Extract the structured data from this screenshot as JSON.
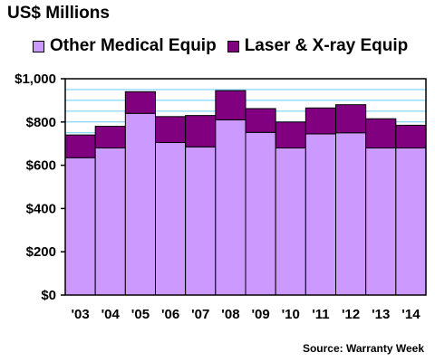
{
  "header": {
    "unit_title": "US$ Millions",
    "source": "Source: Warranty Week"
  },
  "colors": {
    "other_medical": "#cc99ff",
    "laser_xray": "#800080",
    "gridline": "#66ccff",
    "plot_bg": "#ffffff"
  },
  "chart_data": {
    "type": "bar",
    "stacked": true,
    "categories": [
      "'03",
      "'04",
      "'05",
      "'06",
      "'07",
      "'08",
      "'09",
      "'10",
      "'11",
      "'12",
      "'13",
      "'14"
    ],
    "series": [
      {
        "name": "Other Medical Equip",
        "values": [
          635,
          680,
          840,
          705,
          685,
          810,
          752,
          680,
          745,
          750,
          680,
          680
        ]
      },
      {
        "name": "Laser & X-ray Equip",
        "values": [
          105,
          100,
          100,
          120,
          145,
          135,
          110,
          120,
          120,
          130,
          135,
          105
        ]
      }
    ],
    "ylim": [
      0,
      1000
    ],
    "yticks": [
      0,
      200,
      400,
      600,
      800,
      1000
    ],
    "ytick_labels": [
      "$0",
      "$200",
      "$400",
      "$600",
      "$800",
      "$1,000"
    ],
    "minor_grid_step": 50,
    "legend": "top",
    "grid": true
  }
}
